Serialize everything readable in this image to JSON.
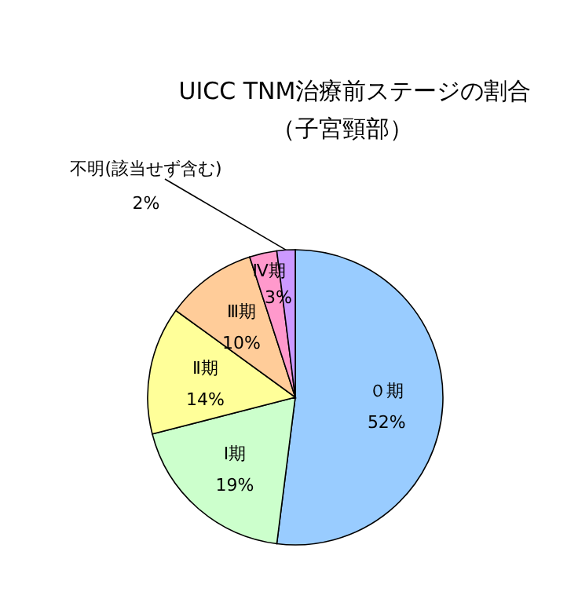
{
  "chart_data": {
    "type": "pie",
    "title": "UICC TNM治療前ステージの割合",
    "subtitle": "（子宮頸部）",
    "categories": [
      "０期",
      "Ⅰ期",
      "Ⅱ期",
      "Ⅲ期",
      "Ⅳ期",
      "不明(該当せず含む)"
    ],
    "values": [
      52,
      19,
      14,
      10,
      3,
      2
    ],
    "value_labels": [
      "52%",
      "19%",
      "14%",
      "10%",
      "3%",
      "2%"
    ],
    "colors": [
      "#99ccff",
      "#ccffcc",
      "#ffff99",
      "#ffcc99",
      "#ff99cc",
      "#cc99ff"
    ]
  }
}
